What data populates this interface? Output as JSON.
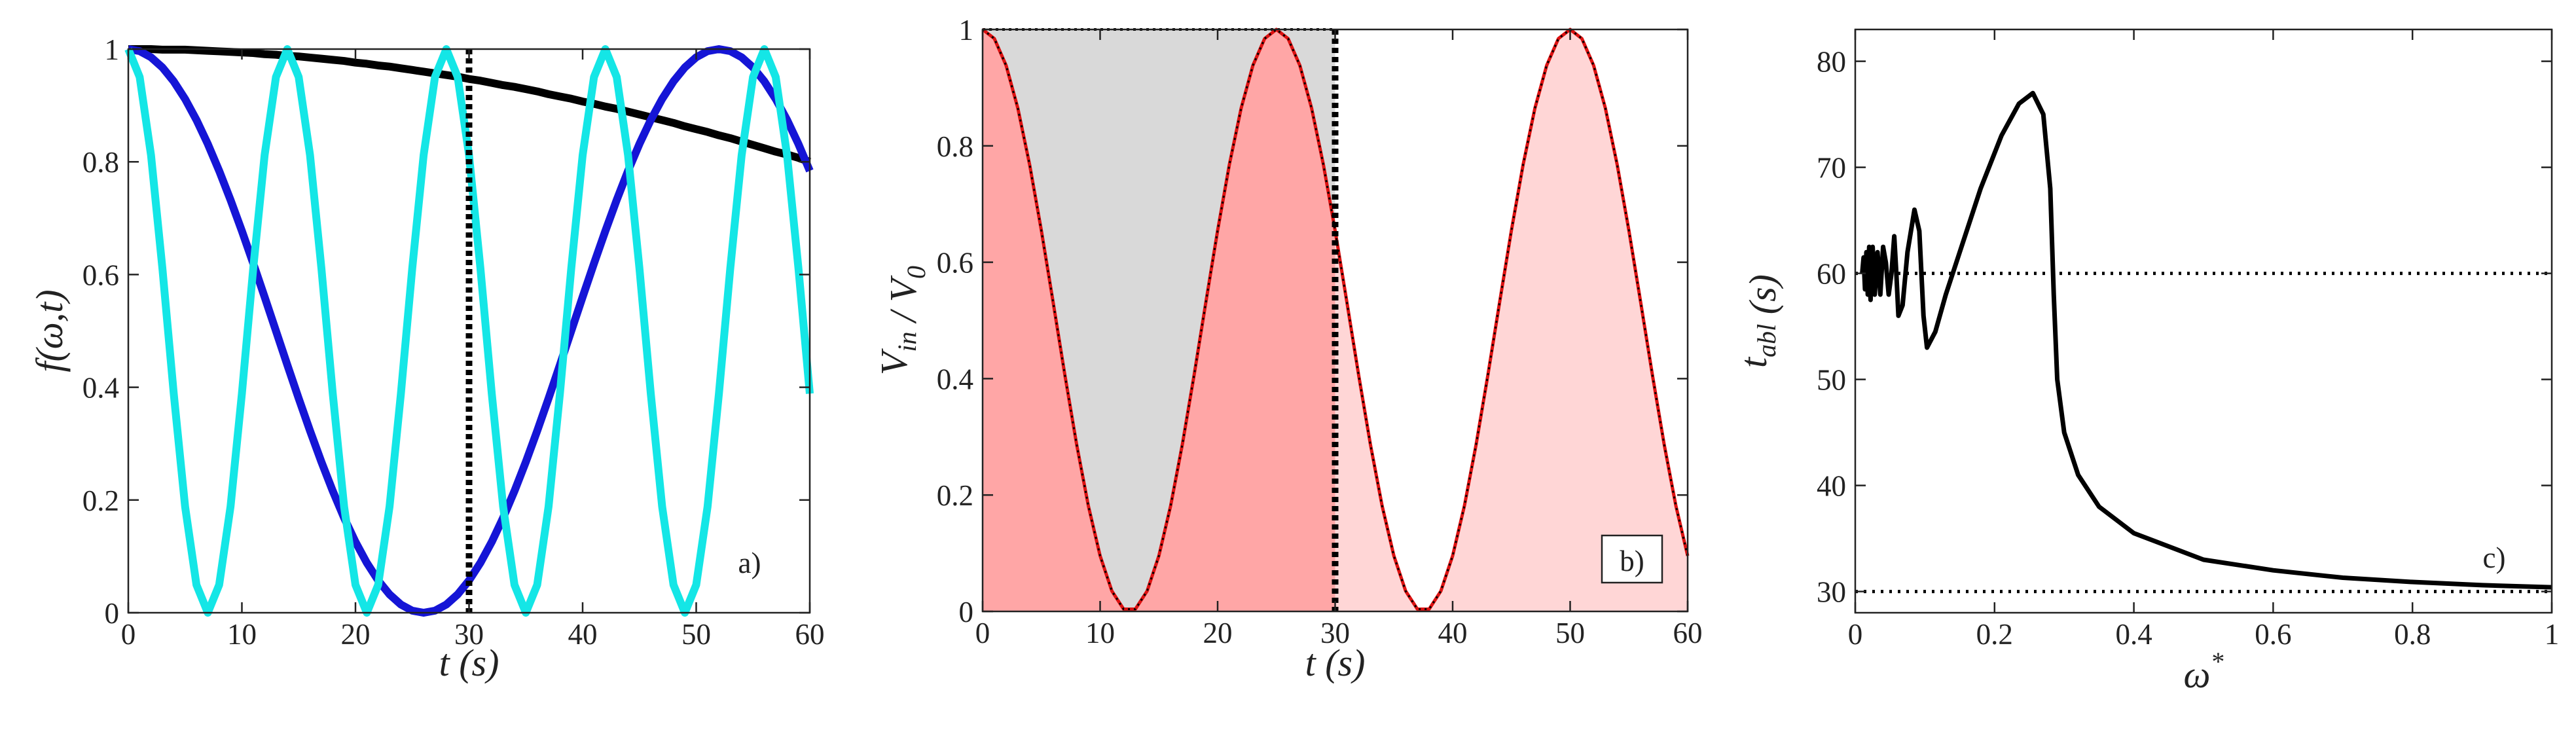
{
  "chart_data": [
    {
      "type": "line",
      "ylabel": [
        {
          "text": "f(ω,t)"
        }
      ],
      "xlabel": [
        {
          "text": "t"
        },
        {
          "text": "  (s)"
        }
      ],
      "x": [
        0,
        1,
        2,
        3,
        4,
        5,
        6,
        7,
        8,
        9,
        10,
        11,
        12,
        13,
        14,
        15,
        16,
        17,
        18,
        19,
        20,
        21,
        22,
        23,
        24,
        25,
        26,
        27,
        28,
        29,
        30,
        31,
        32,
        33,
        34,
        35,
        36,
        37,
        38,
        39,
        40,
        41,
        42,
        43,
        44,
        45,
        46,
        47,
        48,
        49,
        50,
        51,
        52,
        53,
        54,
        55,
        56,
        57,
        58,
        59,
        60
      ],
      "series": [
        {
          "color": "#000000",
          "values": [
            1,
            1,
            1,
            0.999,
            0.999,
            0.999,
            0.998,
            0.997,
            0.996,
            0.995,
            0.994,
            0.993,
            0.991,
            0.99,
            0.988,
            0.987,
            0.985,
            0.983,
            0.981,
            0.979,
            0.976,
            0.974,
            0.971,
            0.969,
            0.966,
            0.963,
            0.96,
            0.957,
            0.954,
            0.951,
            0.947,
            0.944,
            0.94,
            0.936,
            0.933,
            0.929,
            0.925,
            0.92,
            0.916,
            0.912,
            0.907,
            0.903,
            0.898,
            0.894,
            0.889,
            0.884,
            0.879,
            0.874,
            0.869,
            0.863,
            0.858,
            0.853,
            0.847,
            0.842,
            0.836,
            0.83,
            0.824,
            0.818,
            0.813,
            0.807,
            0.8
          ]
        },
        {
          "color": "#1515d6",
          "values": [
            1,
            0.9964,
            0.9855,
            0.9675,
            0.9427,
            0.9115,
            0.8743,
            0.8316,
            0.784,
            0.7324,
            0.6773,
            0.6197,
            0.5603,
            0.5,
            0.4397,
            0.3803,
            0.3227,
            0.2676,
            0.216,
            0.1684,
            0.1257,
            0.0885,
            0.0573,
            0.0325,
            0.0145,
            0.0036,
            0,
            0.0036,
            0.0145,
            0.0325,
            0.0573,
            0.0885,
            0.1257,
            0.1684,
            0.216,
            0.2676,
            0.3227,
            0.3803,
            0.4397,
            0.5,
            0.5603,
            0.6197,
            0.6773,
            0.7324,
            0.784,
            0.8316,
            0.8743,
            0.9115,
            0.9427,
            0.9675,
            0.9855,
            0.9964,
            1,
            0.9964,
            0.9855,
            0.9675,
            0.9427,
            0.9115,
            0.8743,
            0.8316,
            0.784
          ]
        },
        {
          "color": "#14e6e6",
          "values": [
            1,
            0.9505,
            0.8117,
            0.6113,
            0.3887,
            0.1883,
            0.0495,
            0,
            0.0495,
            0.1883,
            0.3887,
            0.6113,
            0.8117,
            0.9505,
            1,
            0.9505,
            0.8117,
            0.6113,
            0.3887,
            0.1883,
            0.0495,
            0,
            0.0495,
            0.1883,
            0.3887,
            0.6113,
            0.8117,
            0.9505,
            1,
            0.9505,
            0.8117,
            0.6113,
            0.3887,
            0.1883,
            0.0495,
            0,
            0.0495,
            0.1883,
            0.3887,
            0.6113,
            0.8117,
            0.9505,
            1,
            0.9505,
            0.8117,
            0.6113,
            0.3887,
            0.1883,
            0.0495,
            0,
            0.0495,
            0.1883,
            0.3887,
            0.6113,
            0.8117,
            0.9505,
            1,
            0.9505,
            0.8117,
            0.6113,
            0.3887
          ]
        }
      ],
      "xlim": [
        0,
        60
      ],
      "ylim": [
        0,
        1
      ],
      "xticks": [
        0,
        10,
        20,
        30,
        40,
        50,
        60
      ],
      "yticks": [
        0,
        0.2,
        0.4,
        0.6,
        0.8,
        1
      ],
      "vline": 30,
      "annotation": "a)"
    },
    {
      "type": "line",
      "ylabel": [
        {
          "text": "V",
          "sub": "in"
        },
        {
          "text": " / V",
          "sub": "0"
        }
      ],
      "xlabel": [
        {
          "text": "t"
        },
        {
          "text": "  (s)"
        }
      ],
      "x": [
        0,
        1,
        2,
        3,
        4,
        5,
        6,
        7,
        8,
        9,
        10,
        11,
        12,
        13,
        14,
        15,
        16,
        17,
        18,
        19,
        20,
        21,
        22,
        23,
        24,
        25,
        26,
        27,
        28,
        29,
        30,
        31,
        32,
        33,
        34,
        35,
        36,
        37,
        38,
        39,
        40,
        41,
        42,
        43,
        44,
        45,
        46,
        47,
        48,
        49,
        50,
        51,
        52,
        53,
        54,
        55,
        56,
        57,
        58,
        59,
        60
      ],
      "series": [
        {
          "color": "#dd1111",
          "dotted_overlay": true,
          "values": [
            1,
            0.9843,
            0.9381,
            0.8645,
            0.7679,
            0.6545,
            0.5314,
            0.4063,
            0.2871,
            0.1813,
            0.0955,
            0.0351,
            0.0039,
            0.0039,
            0.0351,
            0.0955,
            0.1813,
            0.2871,
            0.4063,
            0.5314,
            0.6545,
            0.7679,
            0.8645,
            0.9381,
            0.9843,
            1,
            0.9843,
            0.9381,
            0.8645,
            0.7679,
            0.6545,
            0.5314,
            0.4063,
            0.2871,
            0.1813,
            0.0955,
            0.0351,
            0.0039,
            0.0039,
            0.0351,
            0.0955,
            0.1813,
            0.2871,
            0.4063,
            0.5314,
            0.6545,
            0.7679,
            0.8645,
            0.9381,
            0.9843,
            1,
            0.9843,
            0.9381,
            0.8645,
            0.7679,
            0.6545,
            0.5314,
            0.4063,
            0.2871,
            0.1813,
            0.0955
          ]
        }
      ],
      "area_colors": [
        "#ffd6d6",
        "#ffa6a6",
        "#d9d9d9"
      ],
      "xlim": [
        0,
        60
      ],
      "ylim": [
        0,
        1
      ],
      "xticks": [
        0,
        10,
        20,
        30,
        40,
        50,
        60
      ],
      "yticks": [
        0,
        0.2,
        0.4,
        0.6,
        0.8,
        1
      ],
      "vline": 30,
      "annotation": "b)",
      "annotation_box": true
    },
    {
      "type": "line",
      "ylabel": [
        {
          "text": "t",
          "sub": "abl"
        },
        {
          "text": " (s)"
        }
      ],
      "xlabel": [
        {
          "text": "ω",
          "sup": "*"
        }
      ],
      "x": [
        0.01,
        0.012,
        0.014,
        0.016,
        0.018,
        0.02,
        0.022,
        0.025,
        0.028,
        0.032,
        0.036,
        0.04,
        0.044,
        0.048,
        0.052,
        0.056,
        0.059,
        0.062,
        0.068,
        0.075,
        0.085,
        0.092,
        0.098,
        0.103,
        0.115,
        0.13,
        0.15,
        0.18,
        0.21,
        0.235,
        0.255,
        0.27,
        0.28,
        0.285,
        0.29,
        0.3,
        0.32,
        0.35,
        0.4,
        0.5,
        0.6,
        0.7,
        0.8,
        0.9,
        1
      ],
      "series": [
        {
          "color": "#000000",
          "values": [
            60,
            61.5,
            58.5,
            62,
            58,
            62.5,
            57.5,
            62.5,
            58,
            62,
            58,
            62.5,
            61,
            58,
            60,
            63.5,
            60,
            56,
            57,
            62,
            66,
            64,
            56,
            53,
            54.5,
            58,
            62,
            68,
            73,
            76,
            77,
            75,
            68,
            58,
            50,
            45,
            41,
            38,
            35.5,
            33,
            32,
            31.3,
            30.9,
            30.6,
            30.4
          ]
        }
      ],
      "xlim": [
        0,
        1
      ],
      "ylim": [
        28,
        83
      ],
      "xticks": [
        0,
        0.2,
        0.4,
        0.6,
        0.8,
        1
      ],
      "yticks": [
        30,
        40,
        50,
        60,
        70,
        80
      ],
      "hlines": [
        60,
        30
      ],
      "annotation": "c)"
    }
  ]
}
